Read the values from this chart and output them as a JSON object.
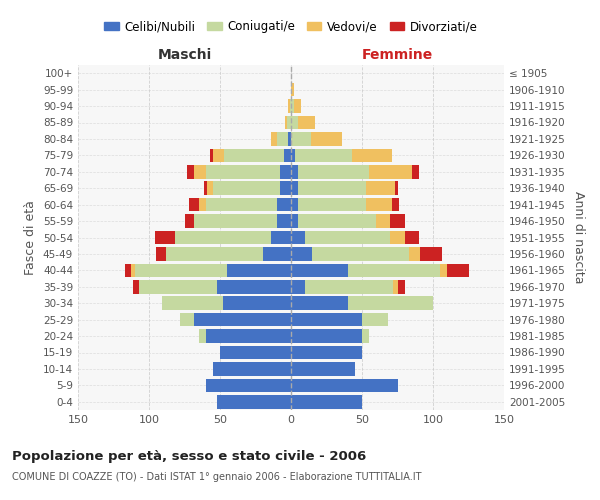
{
  "age_groups": [
    "0-4",
    "5-9",
    "10-14",
    "15-19",
    "20-24",
    "25-29",
    "30-34",
    "35-39",
    "40-44",
    "45-49",
    "50-54",
    "55-59",
    "60-64",
    "65-69",
    "70-74",
    "75-79",
    "80-84",
    "85-89",
    "90-94",
    "95-99",
    "100+"
  ],
  "birth_years": [
    "2001-2005",
    "1996-2000",
    "1991-1995",
    "1986-1990",
    "1981-1985",
    "1976-1980",
    "1971-1975",
    "1966-1970",
    "1961-1965",
    "1956-1960",
    "1951-1955",
    "1946-1950",
    "1941-1945",
    "1936-1940",
    "1931-1935",
    "1926-1930",
    "1921-1925",
    "1916-1920",
    "1911-1915",
    "1906-1910",
    "≤ 1905"
  ],
  "males": {
    "celibi": [
      52,
      60,
      55,
      50,
      60,
      68,
      48,
      52,
      45,
      20,
      14,
      10,
      10,
      8,
      8,
      5,
      2,
      0,
      0,
      0,
      0
    ],
    "coniugati": [
      0,
      0,
      0,
      0,
      5,
      10,
      43,
      55,
      65,
      68,
      68,
      58,
      50,
      47,
      52,
      42,
      8,
      3,
      1,
      0,
      0
    ],
    "vedovi": [
      0,
      0,
      0,
      0,
      0,
      0,
      0,
      0,
      3,
      0,
      0,
      0,
      5,
      4,
      8,
      8,
      4,
      1,
      1,
      0,
      0
    ],
    "divorziati": [
      0,
      0,
      0,
      0,
      0,
      0,
      0,
      4,
      4,
      7,
      14,
      7,
      7,
      2,
      5,
      2,
      0,
      0,
      0,
      0,
      0
    ]
  },
  "females": {
    "nubili": [
      50,
      75,
      45,
      50,
      50,
      50,
      40,
      10,
      40,
      15,
      10,
      5,
      5,
      5,
      5,
      3,
      0,
      0,
      0,
      0,
      0
    ],
    "coniugate": [
      0,
      0,
      0,
      0,
      5,
      18,
      60,
      62,
      65,
      68,
      60,
      55,
      48,
      48,
      50,
      40,
      14,
      5,
      2,
      0,
      0
    ],
    "vedove": [
      0,
      0,
      0,
      0,
      0,
      0,
      0,
      3,
      5,
      8,
      10,
      10,
      18,
      20,
      30,
      28,
      22,
      12,
      5,
      2,
      0
    ],
    "divorziate": [
      0,
      0,
      0,
      0,
      0,
      0,
      0,
      5,
      15,
      15,
      10,
      10,
      5,
      2,
      5,
      0,
      0,
      0,
      0,
      0,
      0
    ]
  },
  "colors": {
    "celibi": "#4472C4",
    "coniugati": "#c5d9a0",
    "vedovi": "#f0c060",
    "divorziati": "#cc2222"
  },
  "xlim": 150,
  "title": "Popolazione per età, sesso e stato civile - 2006",
  "subtitle": "COMUNE DI COAZZE (TO) - Dati ISTAT 1° gennaio 2006 - Elaborazione TUTTITALIA.IT",
  "xlabel_left": "Maschi",
  "xlabel_right": "Femmine",
  "ylabel_left": "Fasce di età",
  "ylabel_right": "Anni di nascita",
  "legend_labels": [
    "Celibi/Nubili",
    "Coniugati/e",
    "Vedovi/e",
    "Divorziati/e"
  ],
  "bg_color": "#ffffff",
  "plot_bg": "#f7f7f7",
  "grid_color": "#cccccc"
}
